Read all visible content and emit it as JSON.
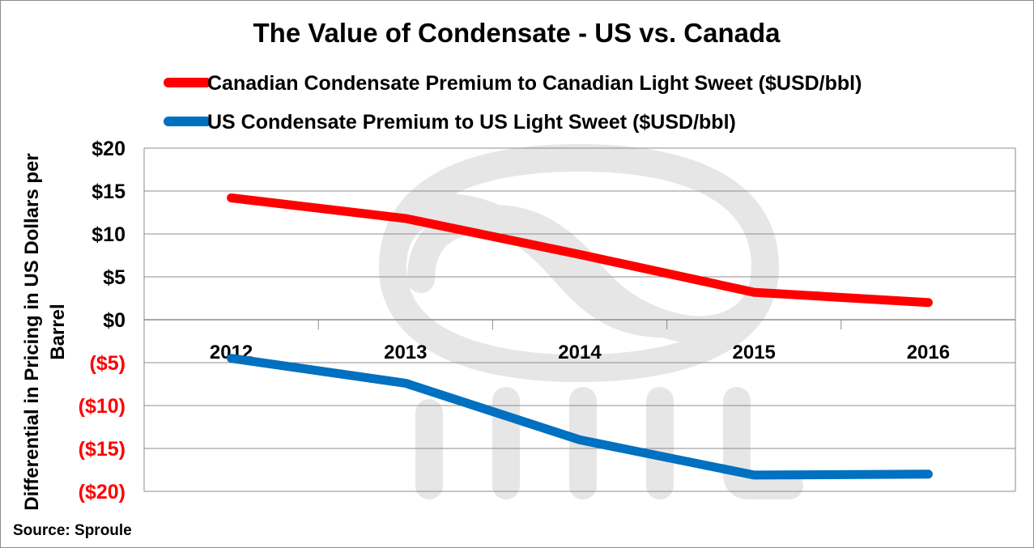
{
  "chart_data": {
    "type": "line",
    "title": "The Value of Condensate - US vs. Canada",
    "categories": [
      "2012",
      "2013",
      "2014",
      "2015",
      "2016"
    ],
    "series": [
      {
        "name": "Canadian Condensate Premium to Canadian Light Sweet ($USD/bbl)",
        "color": "#ff0000",
        "values": [
          14.2,
          11.8,
          7.6,
          3.2,
          2.0
        ]
      },
      {
        "name": "US Condensate Premium to US Light Sweet ($USD/bbl)",
        "color": "#0070c0",
        "values": [
          -4.5,
          -7.4,
          -14.0,
          -18.1,
          -18.0
        ]
      }
    ],
    "ylabel": "Differential in Pricing in US Dollars per Barrel",
    "ylabel_lines": [
      "Differential in Pricing in US Dollars per",
      "Barrel"
    ],
    "xlabel": "",
    "ylim": [
      -20,
      20
    ],
    "ytick_values": [
      20,
      15,
      10,
      5,
      0,
      -5,
      -10,
      -15,
      -20
    ],
    "ytick_labels": [
      "$20",
      "$15",
      "$10",
      "$5",
      "$0",
      "($5)",
      "($10)",
      "($15)",
      "($20)"
    ],
    "negative_tick_color": "#ff0000",
    "positive_tick_color": "#000000",
    "grid": true,
    "legend_position": "top-left",
    "source": "Source: Sproule",
    "watermark_icon": "sproule-logo-watermark"
  }
}
